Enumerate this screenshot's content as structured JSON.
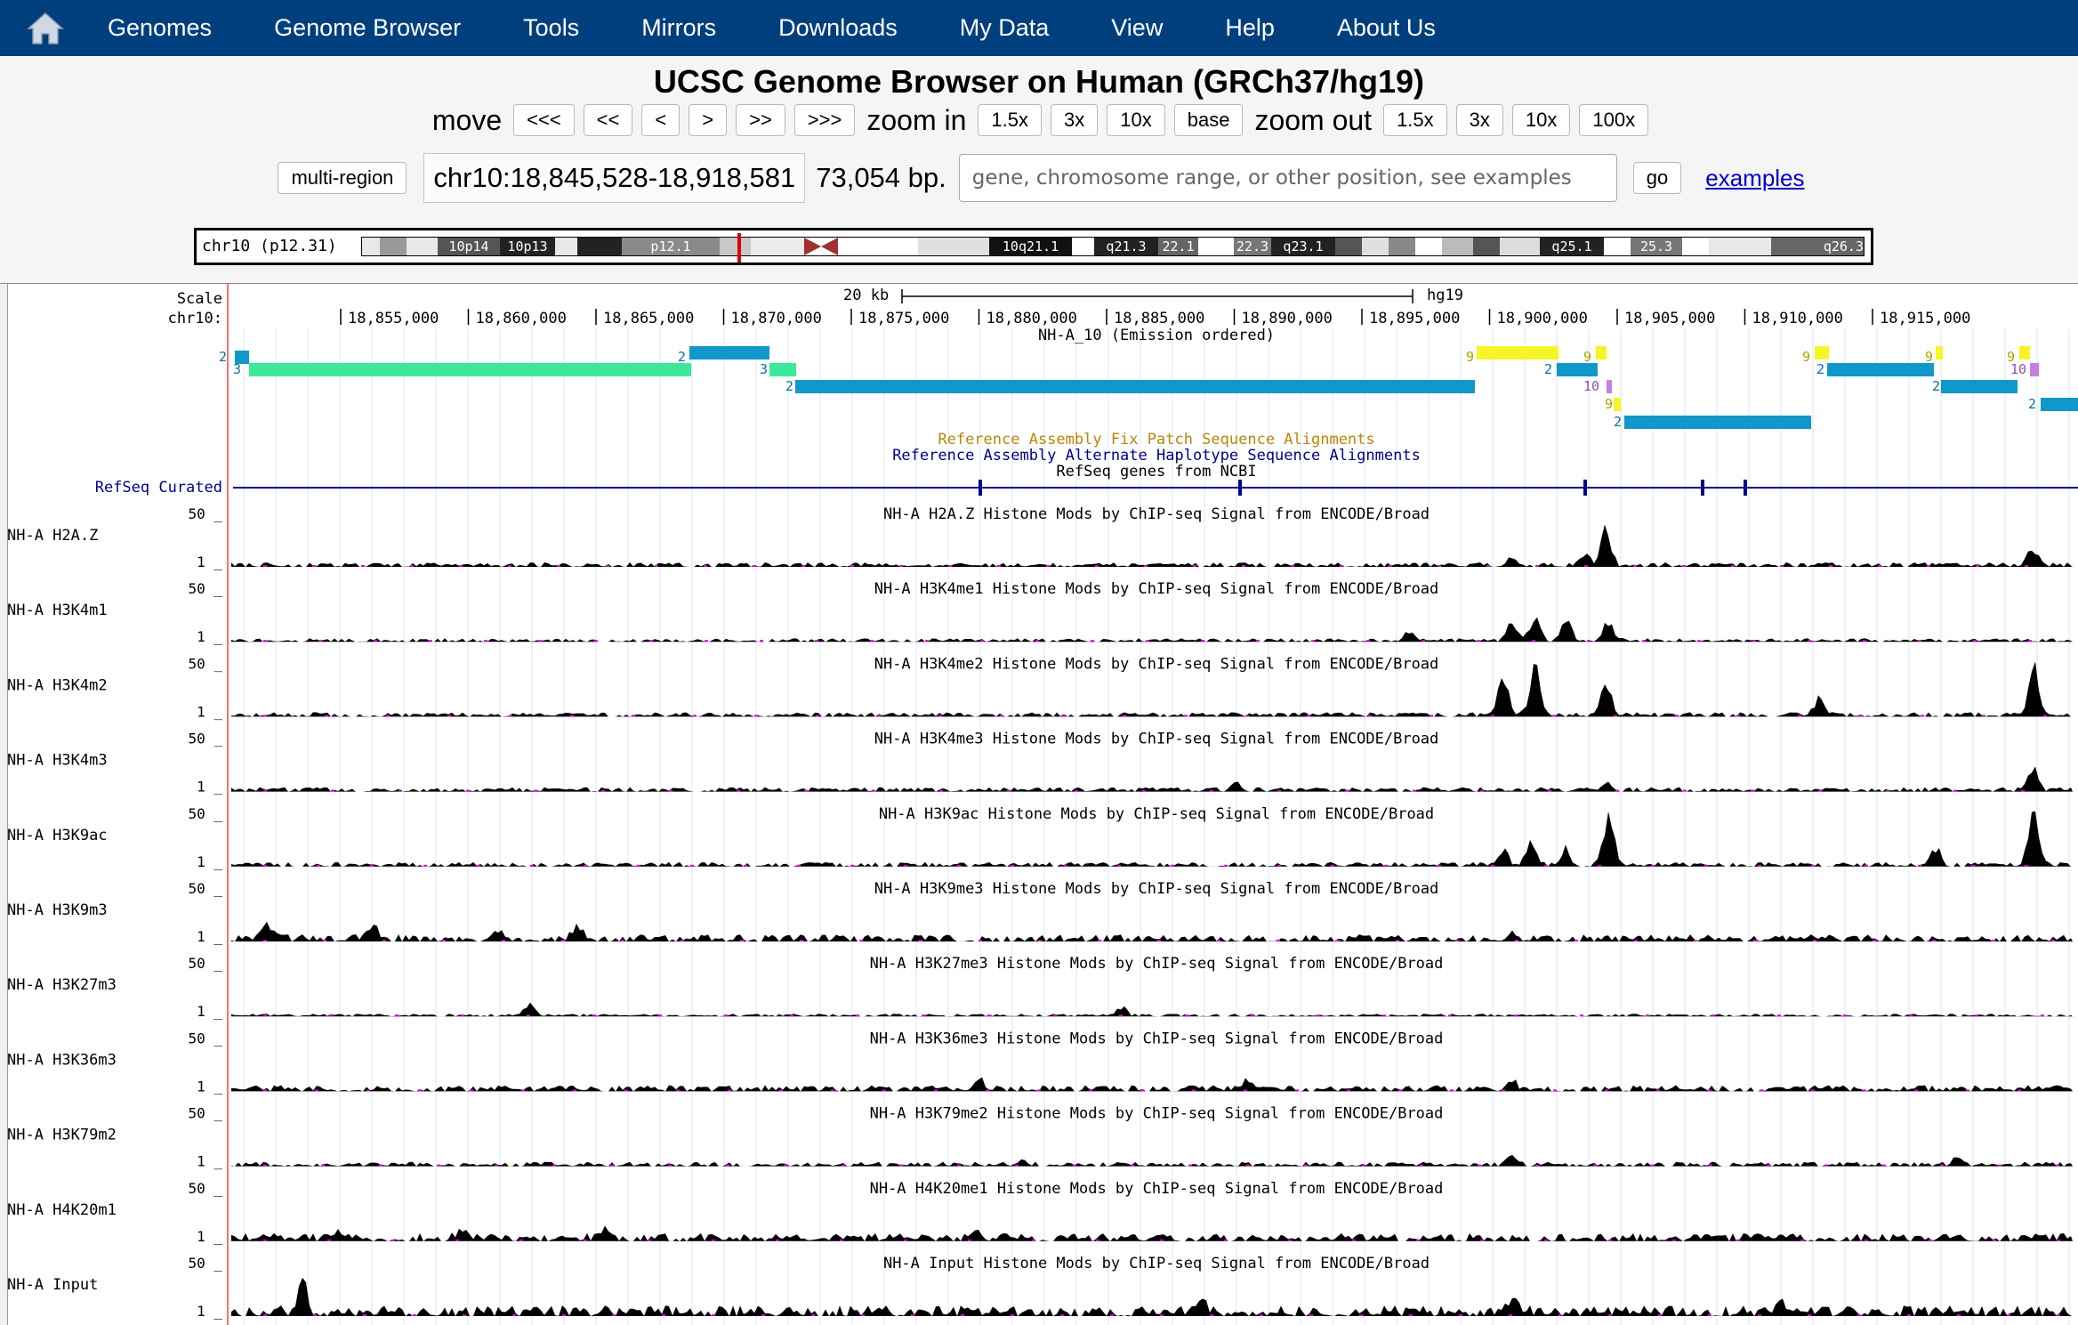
{
  "nav": {
    "home_icon": "home-icon",
    "items": [
      "Genomes",
      "Genome Browser",
      "Tools",
      "Mirrors",
      "Downloads",
      "My Data",
      "View",
      "Help",
      "About Us"
    ]
  },
  "header": {
    "title": "UCSC Genome Browser on Human (GRCh37/hg19)",
    "move_label": "move",
    "move_buttons": [
      "<<<",
      "<<",
      "<",
      ">",
      ">>",
      ">>>"
    ],
    "zoom_in_label": "zoom in",
    "zoom_in_buttons": [
      "1.5x",
      "3x",
      "10x",
      "base"
    ],
    "zoom_out_label": "zoom out",
    "zoom_out_buttons": [
      "1.5x",
      "3x",
      "10x",
      "100x"
    ],
    "multi_region_label": "multi-region",
    "position": "chr10:18,845,528-18,918,581",
    "size": "73,054 bp.",
    "search_placeholder": "gene, chromosome range, or other position, see examples",
    "go_label": "go",
    "examples_label": "examples"
  },
  "ideogram": {
    "chrom_label": "chr10 (p12.31)",
    "bands": [
      "10p14",
      "10p13",
      "p12.1",
      "10q21.1",
      "q21.3",
      "22.1",
      "22.3",
      "q23.1",
      "q25.1",
      "25.3",
      "q26.3"
    ]
  },
  "tracks": {
    "scale_label": "Scale",
    "chrom_label": "chr10:",
    "scale_bar": "20 kb",
    "assembly": "hg19",
    "positions": [
      "18,855,000",
      "18,860,000",
      "18,865,000",
      "18,870,000",
      "18,875,000",
      "18,880,000",
      "18,885,000",
      "18,890,000",
      "18,895,000",
      "18,900,000",
      "18,905,000",
      "18,910,000",
      "18,915,000"
    ],
    "chromhmm_title": "NH-A_10 (Emission ordered)",
    "segments_numbers": [
      "2",
      "3",
      "2",
      "3",
      "2",
      "9",
      "9",
      "2",
      "10",
      "9",
      "2",
      "9",
      "2",
      "9",
      "10",
      "9",
      "2",
      "2"
    ],
    "fix_patch": "Reference Assembly Fix Patch Sequence Alignments",
    "alt_haplo": "Reference Assembly Alternate Haplotype Sequence Alignments",
    "refseq_title": "RefSeq genes from NCBI",
    "refseq_label": "RefSeq Curated",
    "scale_max": "50 _",
    "scale_min": "1 _",
    "signal_tracks": [
      {
        "label": "NH-A H2A.Z",
        "title": "NH-A H2A.Z Histone Mods by ChIP-seq Signal from ENCODE/Broad"
      },
      {
        "label": "NH-A H3K4m1",
        "title": "NH-A H3K4me1 Histone Mods by ChIP-seq Signal from ENCODE/Broad"
      },
      {
        "label": "NH-A H3K4m2",
        "title": "NH-A H3K4me2 Histone Mods by ChIP-seq Signal from ENCODE/Broad"
      },
      {
        "label": "NH-A H3K4m3",
        "title": "NH-A H3K4me3 Histone Mods by ChIP-seq Signal from ENCODE/Broad"
      },
      {
        "label": "NH-A H3K9ac",
        "title": "NH-A H3K9ac Histone Mods by ChIP-seq Signal from ENCODE/Broad"
      },
      {
        "label": "NH-A H3K9m3",
        "title": "NH-A H3K9me3 Histone Mods by ChIP-seq Signal from ENCODE/Broad"
      },
      {
        "label": "NH-A H3K27m3",
        "title": "NH-A H3K27me3 Histone Mods by ChIP-seq Signal from ENCODE/Broad"
      },
      {
        "label": "NH-A H3K36m3",
        "title": "NH-A H3K36me3 Histone Mods by ChIP-seq Signal from ENCODE/Broad"
      },
      {
        "label": "NH-A H3K79m2",
        "title": "NH-A H3K79me2 Histone Mods by ChIP-seq Signal from ENCODE/Broad"
      },
      {
        "label": "NH-A H4K20m1",
        "title": "NH-A H4K20me1 Histone Mods by ChIP-seq Signal from ENCODE/Broad"
      },
      {
        "label": "NH-A Input",
        "title": "NH-A Input Histone Mods by ChIP-seq Signal from ENCODE/Broad"
      }
    ]
  },
  "colors": {
    "nav_bg": "#003f7d",
    "state_green": "#3ce89a",
    "state_blue": "#0f98c9",
    "state_yellow": "#f5f529",
    "state_purple": "#c77ee0",
    "overflow_magenta": "#d400d4",
    "track_title_blue": "#00008c",
    "fix_patch_color": "#b8860b"
  }
}
